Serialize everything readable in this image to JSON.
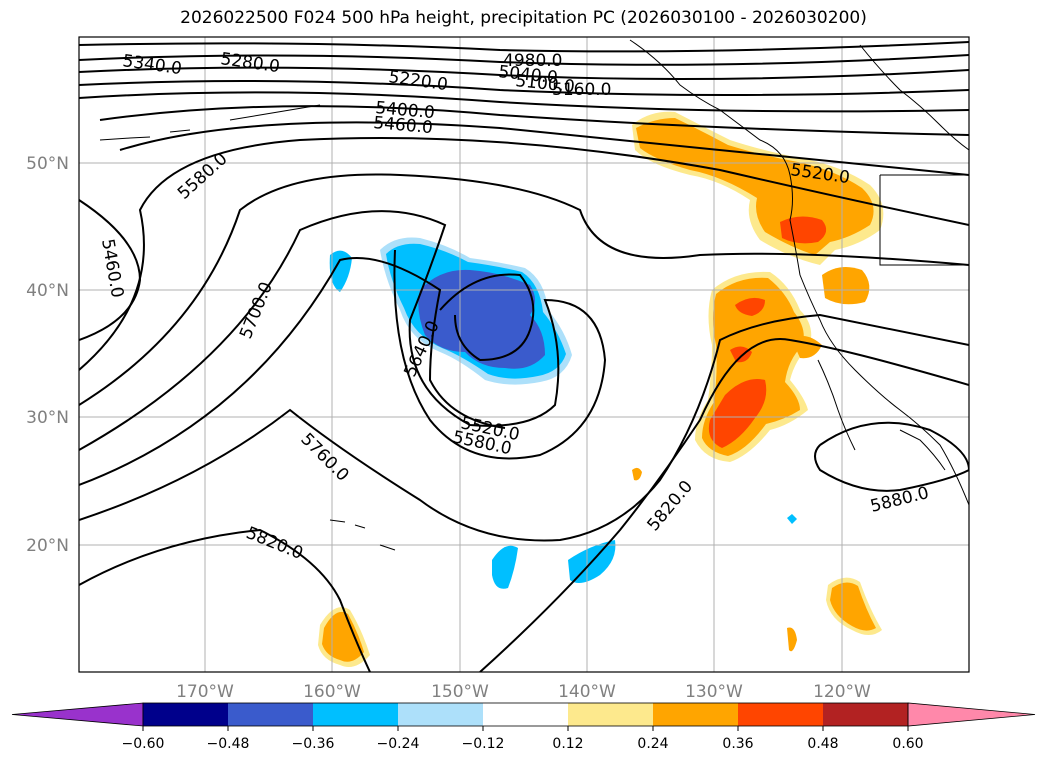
{
  "title": "2026022500 F024 500 hPa height, precipitation PC (2026030100 - 2026030200)",
  "lat_labels": [
    "50°N",
    "40°N",
    "30°N",
    "20°N"
  ],
  "lon_labels": [
    "170°W",
    "160°W",
    "150°W",
    "140°W",
    "130°W",
    "120°W"
  ],
  "contour_labels": [
    "5340.0",
    "5280.0",
    "5220.0",
    "4980.0",
    "5040.0",
    "5100.0",
    "5160.0",
    "5400.0",
    "5460.0",
    "5580.0",
    "5460.0",
    "5700.0",
    "5640.0",
    "5520.0",
    "5580.0",
    "5760.0",
    "5820.0",
    "5820.0",
    "5880.0",
    "5520.0"
  ],
  "colorbar": {
    "ticks": [
      "−0.60",
      "−0.48",
      "−0.36",
      "−0.24",
      "−0.12",
      "0.12",
      "0.24",
      "0.36",
      "0.48",
      "0.60"
    ],
    "colors": [
      "#9932cc",
      "#00008b",
      "#3a5bcc",
      "#00bfff",
      "#ade0fa",
      "#ffffff",
      "#fde98d",
      "#ffa500",
      "#ff4500",
      "#b22222",
      "#ff88aa"
    ]
  },
  "colors": {
    "precip_pos_low": "#fde98d",
    "precip_pos": "#ffa500",
    "precip_pos_high": "#ff4500",
    "precip_neg_low": "#ade0fa",
    "precip_neg": "#00bfff",
    "precip_neg_high": "#3a5bcc"
  }
}
